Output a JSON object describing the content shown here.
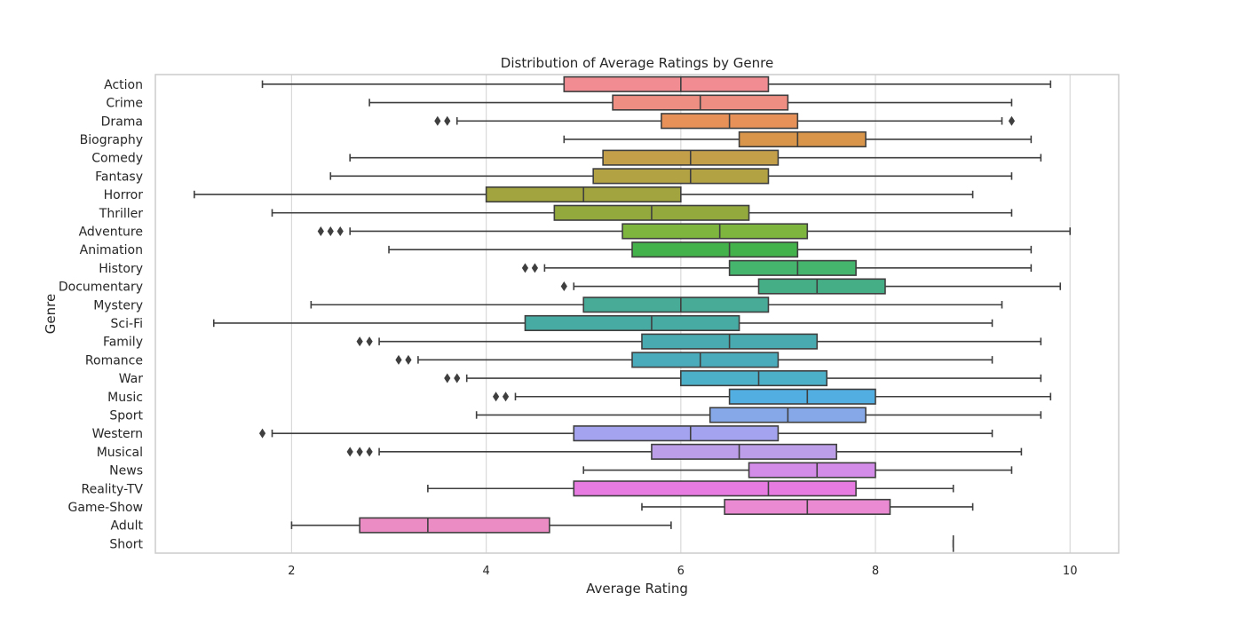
{
  "chart_data": {
    "type": "boxplot",
    "title": "Distribution of Average Ratings by Genre",
    "xlabel": "Average Rating",
    "ylabel": "Genre",
    "xlim": [
      0.6,
      10.5
    ],
    "xticks": [
      2,
      4,
      6,
      8,
      10
    ],
    "grid": true,
    "orientation": "horizontal",
    "categories": [
      "Action",
      "Crime",
      "Drama",
      "Biography",
      "Comedy",
      "Fantasy",
      "Horror",
      "Thriller",
      "Adventure",
      "Animation",
      "History",
      "Documentary",
      "Mystery",
      "Sci-Fi",
      "Family",
      "Romance",
      "War",
      "Music",
      "Sport",
      "Western",
      "Musical",
      "News",
      "Reality-TV",
      "Game-Show",
      "Adult",
      "Short"
    ],
    "boxes": [
      {
        "genre": "Action",
        "whisker_low": 1.7,
        "q1": 4.8,
        "median": 6.0,
        "q3": 6.9,
        "whisker_high": 9.8,
        "outliers": [],
        "color": "#f08c92"
      },
      {
        "genre": "Crime",
        "whisker_low": 2.8,
        "q1": 5.3,
        "median": 6.2,
        "q3": 7.1,
        "whisker_high": 9.4,
        "outliers": [],
        "color": "#ee8e82"
      },
      {
        "genre": "Drama",
        "whisker_low": 3.7,
        "q1": 5.8,
        "median": 6.5,
        "q3": 7.2,
        "whisker_high": 9.3,
        "outliers": [
          3.5,
          3.6,
          9.4
        ],
        "color": "#e79158"
      },
      {
        "genre": "Biography",
        "whisker_low": 4.8,
        "q1": 6.6,
        "median": 7.2,
        "q3": 7.9,
        "whisker_high": 9.6,
        "outliers": [],
        "color": "#d9964a"
      },
      {
        "genre": "Comedy",
        "whisker_low": 2.6,
        "q1": 5.2,
        "median": 6.1,
        "q3": 7.0,
        "whisker_high": 9.7,
        "outliers": [],
        "color": "#c49f4a"
      },
      {
        "genre": "Fantasy",
        "whisker_low": 2.4,
        "q1": 5.1,
        "median": 6.1,
        "q3": 6.9,
        "whisker_high": 9.4,
        "outliers": [],
        "color": "#b3a243"
      },
      {
        "genre": "Horror",
        "whisker_low": 1.0,
        "q1": 4.0,
        "median": 5.0,
        "q3": 6.0,
        "whisker_high": 9.0,
        "outliers": [],
        "color": "#a1a43f"
      },
      {
        "genre": "Thriller",
        "whisker_low": 1.8,
        "q1": 4.7,
        "median": 5.7,
        "q3": 6.7,
        "whisker_high": 9.4,
        "outliers": [],
        "color": "#93a83d"
      },
      {
        "genre": "Adventure",
        "whisker_low": 2.6,
        "q1": 5.4,
        "median": 6.4,
        "q3": 7.3,
        "whisker_high": 10.0,
        "outliers": [
          2.3,
          2.4,
          2.5
        ],
        "color": "#7db53f"
      },
      {
        "genre": "Animation",
        "whisker_low": 3.0,
        "q1": 5.5,
        "median": 6.5,
        "q3": 7.2,
        "whisker_high": 9.6,
        "outliers": [],
        "color": "#43b24a"
      },
      {
        "genre": "History",
        "whisker_low": 4.6,
        "q1": 6.5,
        "median": 7.2,
        "q3": 7.8,
        "whisker_high": 9.6,
        "outliers": [
          4.4,
          4.5
        ],
        "color": "#45b46d"
      },
      {
        "genre": "Documentary",
        "whisker_low": 4.9,
        "q1": 6.8,
        "median": 7.4,
        "q3": 8.1,
        "whisker_high": 9.9,
        "outliers": [
          4.8
        ],
        "color": "#45ae86"
      },
      {
        "genre": "Mystery",
        "whisker_low": 2.2,
        "q1": 5.0,
        "median": 6.0,
        "q3": 6.9,
        "whisker_high": 9.3,
        "outliers": [],
        "color": "#47ab98"
      },
      {
        "genre": "Sci-Fi",
        "whisker_low": 1.2,
        "q1": 4.4,
        "median": 5.7,
        "q3": 6.6,
        "whisker_high": 9.2,
        "outliers": [],
        "color": "#47aaa3"
      },
      {
        "genre": "Family",
        "whisker_low": 2.9,
        "q1": 5.6,
        "median": 6.5,
        "q3": 7.4,
        "whisker_high": 9.7,
        "outliers": [
          2.7,
          2.8
        ],
        "color": "#49abaf"
      },
      {
        "genre": "Romance",
        "whisker_low": 3.3,
        "q1": 5.5,
        "median": 6.2,
        "q3": 7.0,
        "whisker_high": 9.2,
        "outliers": [
          3.1,
          3.2
        ],
        "color": "#4aacbb"
      },
      {
        "genre": "War",
        "whisker_low": 3.8,
        "q1": 6.0,
        "median": 6.8,
        "q3": 7.5,
        "whisker_high": 9.7,
        "outliers": [
          3.6,
          3.7
        ],
        "color": "#4cb0c9"
      },
      {
        "genre": "Music",
        "whisker_low": 4.3,
        "q1": 6.5,
        "median": 7.3,
        "q3": 8.0,
        "whisker_high": 9.8,
        "outliers": [
          4.1,
          4.2
        ],
        "color": "#52aee0"
      },
      {
        "genre": "Sport",
        "whisker_low": 3.9,
        "q1": 6.3,
        "median": 7.1,
        "q3": 7.9,
        "whisker_high": 9.7,
        "outliers": [],
        "color": "#86a8e8"
      },
      {
        "genre": "Western",
        "whisker_low": 1.8,
        "q1": 4.9,
        "median": 6.1,
        "q3": 7.0,
        "whisker_high": 9.2,
        "outliers": [
          1.7
        ],
        "color": "#a3a3ef"
      },
      {
        "genre": "Musical",
        "whisker_low": 2.9,
        "q1": 5.7,
        "median": 6.6,
        "q3": 7.6,
        "whisker_high": 9.5,
        "outliers": [
          2.6,
          2.7,
          2.8
        ],
        "color": "#bb9de8"
      },
      {
        "genre": "News",
        "whisker_low": 5.0,
        "q1": 6.7,
        "median": 7.4,
        "q3": 8.0,
        "whisker_high": 9.4,
        "outliers": [],
        "color": "#d38ce8"
      },
      {
        "genre": "Reality-TV",
        "whisker_low": 3.4,
        "q1": 4.9,
        "median": 6.9,
        "q3": 7.8,
        "whisker_high": 8.8,
        "outliers": [],
        "color": "#e77be2"
      },
      {
        "genre": "Game-Show",
        "whisker_low": 5.6,
        "q1": 6.45,
        "median": 7.3,
        "q3": 8.15,
        "whisker_high": 9.0,
        "outliers": [],
        "color": "#e98ad2"
      },
      {
        "genre": "Adult",
        "whisker_low": 2.0,
        "q1": 2.7,
        "median": 3.4,
        "q3": 4.65,
        "whisker_high": 5.9,
        "outliers": [],
        "color": "#eb8dc4"
      },
      {
        "genre": "Short",
        "whisker_low": 8.8,
        "q1": 8.8,
        "median": 8.8,
        "q3": 8.8,
        "whisker_high": 8.8,
        "outliers": [],
        "color": "#ed8fbd"
      }
    ]
  }
}
